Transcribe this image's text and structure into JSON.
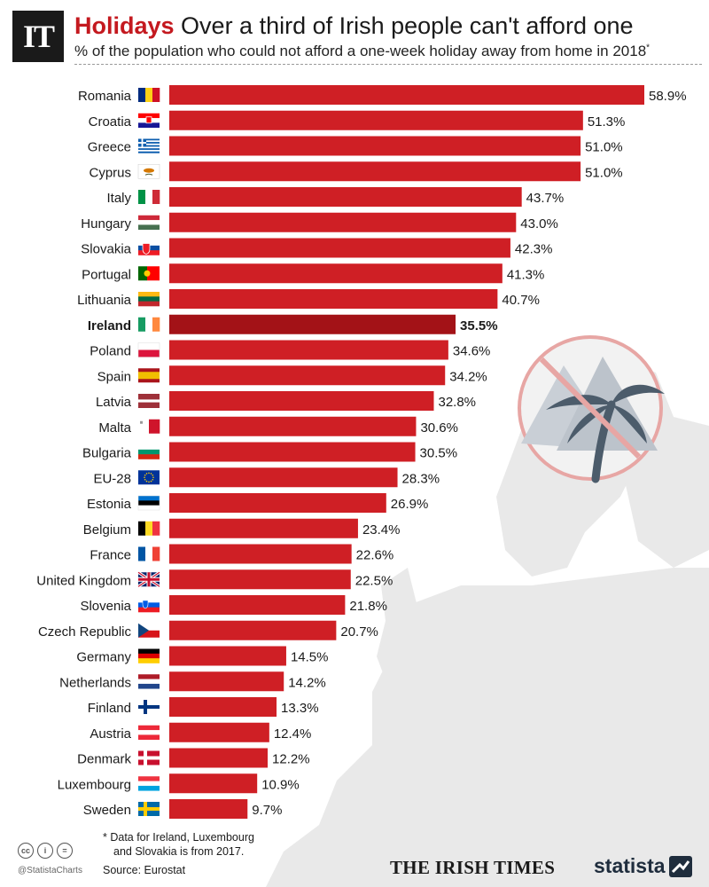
{
  "header": {
    "logo_text": "IT",
    "title_lead": "Holidays",
    "title_rest": " Over a third of Irish people can't afford one",
    "subtitle": "% of the population who could not afford a one-week holiday away from home in 2018",
    "subtitle_mark": "*"
  },
  "footer": {
    "footnote_line1": "* Data for Ireland, Luxembourg",
    "footnote_line2": "and Slovakia is from 2017.",
    "source": "Source: Eurostat",
    "handle": "@StatistaCharts",
    "cc_icons": [
      "cc",
      "i",
      "="
    ],
    "publisher": "THE IRISH TIMES",
    "brand": "statista"
  },
  "colors": {
    "bar": "#cf1f25",
    "bar_highlight": "#a31217",
    "map": "#e9e9e9",
    "illustration_gray": "#c9cfd6",
    "palm": "#4c5c6b",
    "prohibited": "#e7a6a4"
  },
  "icons": [
    "creative-commons-icon",
    "attribution-icon",
    "no-derivatives-icon",
    "statista-logo-icon",
    "palm-tree-prohibited-icon"
  ],
  "chart_data": {
    "type": "bar",
    "orientation": "horizontal",
    "title": "Holidays Over a third of Irish people can't afford one",
    "subtitle": "% of the population who could not afford a one-week holiday away from home in 2018*",
    "value_suffix": "%",
    "highlight": "Ireland",
    "categories": [
      "Romania",
      "Croatia",
      "Greece",
      "Cyprus",
      "Italy",
      "Hungary",
      "Slovakia",
      "Portugal",
      "Lithuania",
      "Ireland",
      "Poland",
      "Spain",
      "Latvia",
      "Malta",
      "Bulgaria",
      "EU-28",
      "Estonia",
      "Belgium",
      "France",
      "United Kingdom",
      "Slovenia",
      "Czech Republic",
      "Germany",
      "Netherlands",
      "Finland",
      "Austria",
      "Denmark",
      "Luxembourg",
      "Sweden"
    ],
    "values": [
      58.9,
      51.3,
      51.0,
      51.0,
      43.7,
      43.0,
      42.3,
      41.3,
      40.7,
      35.5,
      34.6,
      34.2,
      32.8,
      30.6,
      30.5,
      28.3,
      26.9,
      23.4,
      22.6,
      22.5,
      21.8,
      20.7,
      14.5,
      14.2,
      13.3,
      12.4,
      12.2,
      10.9,
      9.7
    ],
    "labels": [
      "58.9%",
      "51.3%",
      "51.0%",
      "51.0%",
      "43.7%",
      "43.0%",
      "42.3%",
      "41.3%",
      "40.7%",
      "35.5%",
      "34.6%",
      "34.2%",
      "32.8%",
      "30.6%",
      "30.5%",
      "28.3%",
      "26.9%",
      "23.4%",
      "22.6%",
      "22.5%",
      "21.8%",
      "20.7%",
      "14.5%",
      "14.2%",
      "13.3%",
      "12.4%",
      "12.2%",
      "10.9%",
      "9.7%"
    ],
    "flags": [
      "romania",
      "croatia",
      "greece",
      "cyprus",
      "italy",
      "hungary",
      "slovakia",
      "portugal",
      "lithuania",
      "ireland",
      "poland",
      "spain",
      "latvia",
      "malta",
      "bulgaria",
      "eu",
      "estonia",
      "belgium",
      "france",
      "united-kingdom",
      "slovenia",
      "czech-republic",
      "germany",
      "netherlands",
      "finland",
      "austria",
      "denmark",
      "luxembourg",
      "sweden"
    ],
    "xlim": [
      0,
      60
    ],
    "grid": false,
    "legend": "none"
  }
}
